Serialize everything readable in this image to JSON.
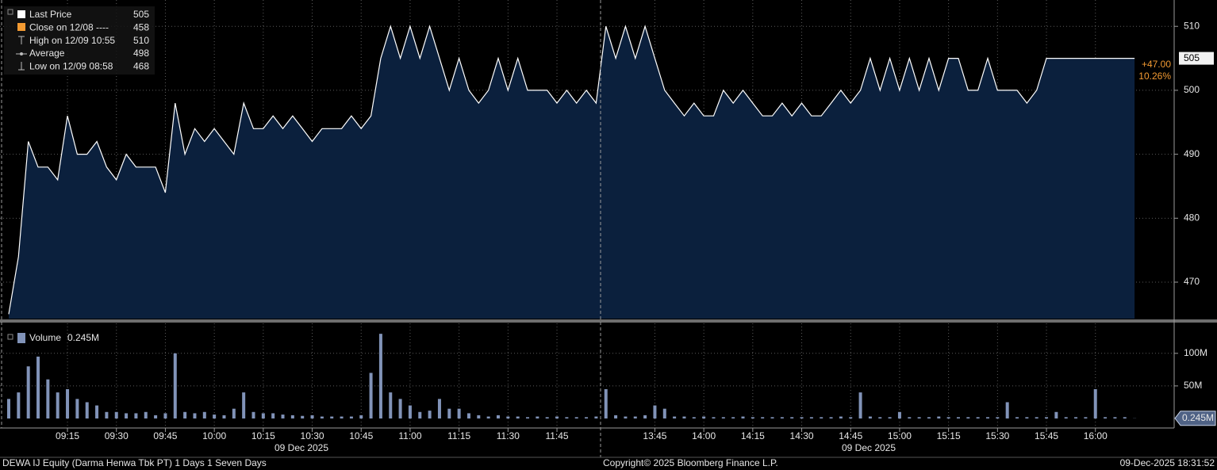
{
  "chart_data": [
    {
      "type": "area",
      "legend": [
        {
          "label": "Last Price",
          "value": 505
        },
        {
          "label": "Close on 12/08 ----",
          "value": 458
        },
        {
          "label": "High on 12/09 10:55",
          "value": 510
        },
        {
          "label": "Average",
          "value": 498
        },
        {
          "label": "Low on 12/09 08:58",
          "value": 468
        }
      ],
      "change": {
        "value": 47,
        "label": "+47.00"
      },
      "change_pct": {
        "value": 10.26,
        "label": "10.26%"
      },
      "series": [
        {
          "color": "#ffffff",
          "fill": "#0b203d",
          "values": [
            465,
            474,
            492,
            488,
            488,
            486,
            496,
            490,
            490,
            492,
            488,
            486,
            490,
            488,
            488,
            488,
            484,
            498,
            490,
            494,
            492,
            494,
            492,
            490,
            498,
            494,
            494,
            496,
            494,
            496,
            494,
            492,
            494,
            494,
            494,
            496,
            494,
            496,
            505,
            510,
            505,
            510,
            505,
            510,
            505,
            500,
            505,
            500,
            498,
            500,
            505,
            500,
            505,
            500,
            500,
            500,
            498,
            500,
            498,
            500,
            498,
            510,
            505,
            510,
            505,
            510,
            505,
            500,
            498,
            496,
            498,
            496,
            496,
            500,
            498,
            500,
            498,
            496,
            496,
            498,
            496,
            498,
            496,
            496,
            498,
            500,
            498,
            500,
            505,
            500,
            505,
            500,
            505,
            500,
            505,
            500,
            505,
            505,
            500,
            500,
            505,
            500,
            500,
            500,
            498,
            500,
            505,
            505,
            505,
            505,
            505,
            505,
            505,
            505,
            505,
            505
          ]
        }
      ],
      "ylim": [
        464.3,
        513.5
      ],
      "yticks": [
        470,
        480,
        490,
        500,
        510
      ],
      "grid": true
    },
    {
      "type": "bar",
      "categories": [
        null,
        null,
        null,
        null,
        null,
        null,
        "09:15",
        null,
        null,
        null,
        null,
        "09:30",
        null,
        null,
        null,
        null,
        "09:45",
        null,
        null,
        null,
        null,
        "10:00",
        null,
        null,
        null,
        null,
        "10:15",
        null,
        null,
        null,
        null,
        "10:30",
        null,
        null,
        null,
        null,
        "10:45",
        null,
        null,
        null,
        null,
        "11:00",
        null,
        null,
        null,
        null,
        "11:15",
        null,
        null,
        null,
        null,
        "11:30",
        null,
        null,
        null,
        null,
        "11:45",
        null,
        null,
        null,
        null,
        null,
        null,
        null,
        null,
        null,
        "13:45",
        null,
        null,
        null,
        null,
        "14:00",
        null,
        null,
        null,
        null,
        "14:15",
        null,
        null,
        null,
        null,
        "14:30",
        null,
        null,
        null,
        null,
        "14:45",
        null,
        null,
        null,
        null,
        "15:00",
        null,
        null,
        null,
        null,
        "15:15",
        null,
        null,
        null,
        null,
        "15:30",
        null,
        null,
        null,
        null,
        "15:45",
        null,
        null,
        null,
        null,
        "16:00",
        null,
        null,
        null,
        null
      ],
      "date_labels": [
        "09 Dec 2025",
        "09 Dec 2025"
      ],
      "series": [
        {
          "name": "Volume",
          "color": "#8193b8",
          "values": [
            30000000.0,
            40000000.0,
            80000000.0,
            95000000.0,
            60000000.0,
            40000000.0,
            45000000.0,
            30000000.0,
            25000000.0,
            20000000.0,
            10000000.0,
            10000000.0,
            8000000.0,
            8000000.0,
            10000000.0,
            5000000.0,
            8000000.0,
            100000000.0,
            10000000.0,
            8000000.0,
            10000000.0,
            6000000.0,
            5000000.0,
            15000000.0,
            40000000.0,
            10000000.0,
            8000000.0,
            8000000.0,
            6000000.0,
            5000000.0,
            4000000.0,
            5000000.0,
            3000000.0,
            3000000.0,
            3000000.0,
            3000000.0,
            5000000.0,
            70000000.0,
            130000000.0,
            40000000.0,
            30000000.0,
            20000000.0,
            10000000.0,
            12000000.0,
            30000000.0,
            15000000.0,
            15000000.0,
            8000000.0,
            5000000.0,
            3000000.0,
            5000000.0,
            3000000.0,
            3000000.0,
            2000000.0,
            3000000.0,
            2000000.0,
            3000000.0,
            2000000.0,
            2000000.0,
            2000000.0,
            3000000.0,
            45000000.0,
            5000000.0,
            3000000.0,
            3000000.0,
            5000000.0,
            20000000.0,
            15000000.0,
            3000000.0,
            3000000.0,
            2000000.0,
            3000000.0,
            2000000.0,
            2000000.0,
            2000000.0,
            3000000.0,
            2000000.0,
            2000000.0,
            2000000.0,
            2000000.0,
            2000000.0,
            2000000.0,
            2000000.0,
            2000000.0,
            2000000.0,
            3000000.0,
            2000000.0,
            40000000.0,
            3000000.0,
            2000000.0,
            2000000.0,
            10000000.0,
            2000000.0,
            2000000.0,
            2000000.0,
            3000000.0,
            2000000.0,
            2000000.0,
            2000000.0,
            2000000.0,
            2000000.0,
            2000000.0,
            25000000.0,
            2000000.0,
            2000000.0,
            2000000.0,
            2000000.0,
            10000000.0,
            2000000.0,
            2000000.0,
            2000000.0,
            45000000.0,
            2000000.0,
            2000000.0,
            2000000.0,
            245000
          ]
        }
      ],
      "last_volume": {
        "value": 245000,
        "label": "0.245M"
      },
      "ylim": [
        -14600000,
        146000000
      ],
      "yticks": [
        {
          "value": 50000000,
          "label": "50M"
        },
        {
          "value": 100000000,
          "label": "100M"
        }
      ]
    }
  ],
  "footer": {
    "left": "DEWA IJ Equity (Darma Henwa Tbk PT) 1 Days 1 Seven Days",
    "center": "Copyright© 2025 Bloomberg Finance L.P.",
    "right": "09-Dec-2025 18:31:52"
  }
}
